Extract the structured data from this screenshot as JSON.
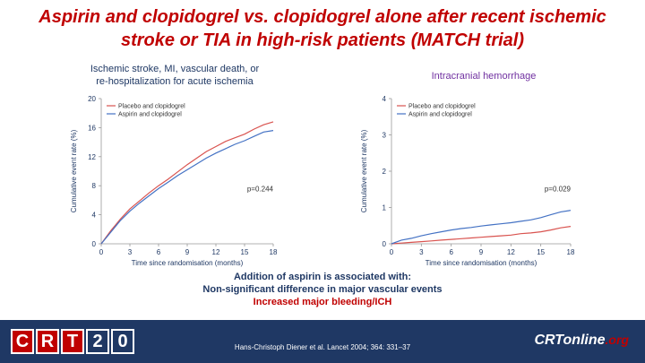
{
  "header": {
    "title_line1": "Aspirin and clopidogrel vs. clopidogrel alone after recent ischemic",
    "title_line2": "stroke or TIA in high-risk patients (MATCH trial)"
  },
  "colors": {
    "placebo": "#d9534f",
    "aspirin": "#4472c4",
    "title": "#c00000",
    "navy": "#1f3864",
    "purple": "#7030a0"
  },
  "chart_data": [
    {
      "type": "line",
      "title_line1": "Ischemic stroke, MI, vascular death, or",
      "title_line2": "re-hospitalization for acute ischemia",
      "xlabel": "Time since randomisation (months)",
      "ylabel": "Cumulative event rate (%)",
      "xlim": [
        0,
        18
      ],
      "ylim": [
        0,
        20
      ],
      "xticks": [
        "0",
        "3",
        "6",
        "9",
        "12",
        "15",
        "18"
      ],
      "yticks": [
        "0",
        "4",
        "8",
        "12",
        "16",
        "20"
      ],
      "legend_position": "top-left",
      "annotation": "p=0.244",
      "series": [
        {
          "name": "Placebo and clopidogrel",
          "x": [
            0,
            1,
            2,
            3,
            4,
            5,
            6,
            7,
            8,
            9,
            10,
            11,
            12,
            13,
            14,
            15,
            16,
            17,
            18
          ],
          "y": [
            0,
            1.8,
            3.4,
            4.8,
            5.9,
            7.0,
            8.0,
            8.9,
            9.9,
            10.9,
            11.8,
            12.7,
            13.4,
            14.1,
            14.6,
            15.1,
            15.8,
            16.4,
            16.8
          ]
        },
        {
          "name": "Aspirin and clopidogrel",
          "x": [
            0,
            1,
            2,
            3,
            4,
            5,
            6,
            7,
            8,
            9,
            10,
            11,
            12,
            13,
            14,
            15,
            16,
            17,
            18
          ],
          "y": [
            0,
            1.6,
            3.2,
            4.5,
            5.6,
            6.6,
            7.6,
            8.5,
            9.4,
            10.2,
            11.0,
            11.8,
            12.5,
            13.1,
            13.7,
            14.2,
            14.8,
            15.4,
            15.6
          ]
        }
      ]
    },
    {
      "type": "line",
      "title": "Intracranial hemorrhage",
      "xlabel": "Time since randomisation (months)",
      "ylabel": "Cumulative event rate (%)",
      "xlim": [
        0,
        18
      ],
      "ylim": [
        0,
        4
      ],
      "xticks": [
        "0",
        "3",
        "6",
        "9",
        "12",
        "15",
        "18"
      ],
      "yticks": [
        "0",
        "1",
        "2",
        "3",
        "4"
      ],
      "legend_position": "top-left",
      "annotation": "p=0.029",
      "series": [
        {
          "name": "Placebo and clopidogrel",
          "x": [
            0,
            1,
            2,
            3,
            4,
            5,
            6,
            7,
            8,
            9,
            10,
            11,
            12,
            13,
            14,
            15,
            16,
            17,
            18
          ],
          "y": [
            0,
            0.02,
            0.04,
            0.06,
            0.08,
            0.1,
            0.12,
            0.14,
            0.16,
            0.18,
            0.2,
            0.22,
            0.24,
            0.28,
            0.3,
            0.33,
            0.38,
            0.44,
            0.48
          ]
        },
        {
          "name": "Aspirin and clopidogrel",
          "x": [
            0,
            1,
            2,
            3,
            4,
            5,
            6,
            7,
            8,
            9,
            10,
            11,
            12,
            13,
            14,
            15,
            16,
            17,
            18
          ],
          "y": [
            0,
            0.1,
            0.15,
            0.22,
            0.28,
            0.33,
            0.38,
            0.42,
            0.45,
            0.49,
            0.52,
            0.55,
            0.58,
            0.62,
            0.66,
            0.72,
            0.8,
            0.88,
            0.92
          ]
        }
      ]
    }
  ],
  "conclusion": {
    "line1": "Addition of aspirin is associated with:",
    "line2": "Non-significant difference in major vascular events",
    "line3": "Increased major bleeding/ICH"
  },
  "footer": {
    "logo_left": [
      "C",
      "R",
      "T",
      "2",
      "0"
    ],
    "citation": "Hans-Christoph Diener et al. Lancet 2004; 364: 331–37",
    "logo_right_main": "CRTonline",
    "logo_right_sub": ".org"
  }
}
